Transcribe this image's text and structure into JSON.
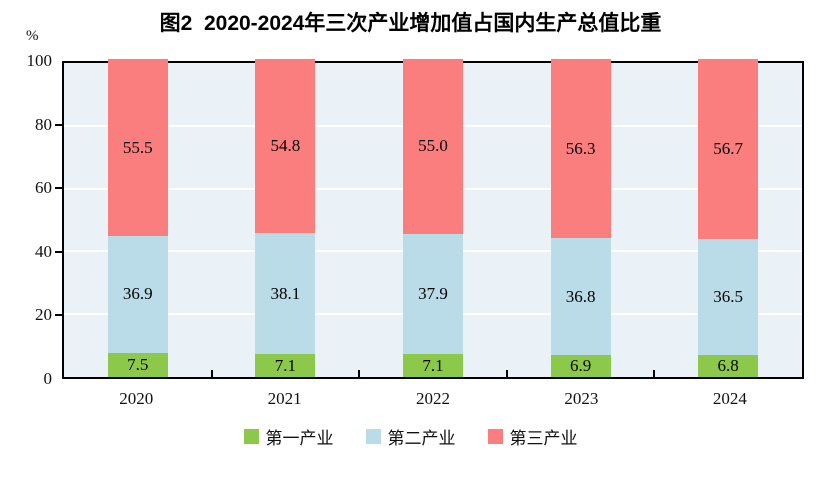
{
  "chart_data": {
    "type": "bar",
    "stacked": true,
    "title": "图2  2020-2024年三次产业增加值占国内生产总值比重",
    "y_unit": "%",
    "ylim": [
      0,
      100
    ],
    "yticks": [
      0,
      20,
      40,
      60,
      80,
      100
    ],
    "grid": "horizontal white gridlines on light blue plot background",
    "legend_position": "bottom",
    "categories": [
      "2020",
      "2021",
      "2022",
      "2023",
      "2024"
    ],
    "series": [
      {
        "name": "第一产业",
        "color": "#8cc94a",
        "values": [
          7.5,
          7.1,
          7.1,
          6.9,
          6.8
        ],
        "labels": [
          "7.5",
          "7.1",
          "7.1",
          "6.9",
          "6.8"
        ]
      },
      {
        "name": "第二产业",
        "color": "#badce8",
        "values": [
          36.9,
          38.1,
          37.9,
          36.8,
          36.5
        ],
        "labels": [
          "36.9",
          "38.1",
          "37.9",
          "36.8",
          "36.5"
        ]
      },
      {
        "name": "第三产业",
        "color": "#fb7e7e",
        "values": [
          55.5,
          54.8,
          55.0,
          56.3,
          56.7
        ],
        "labels": [
          "55.5",
          "54.8",
          "55.0",
          "56.3",
          "56.7"
        ]
      }
    ],
    "colors": {
      "plot_background": "#eaf2f7",
      "gridline": "#ffffff",
      "axis_frame": "#000000",
      "text": "#111111"
    }
  }
}
